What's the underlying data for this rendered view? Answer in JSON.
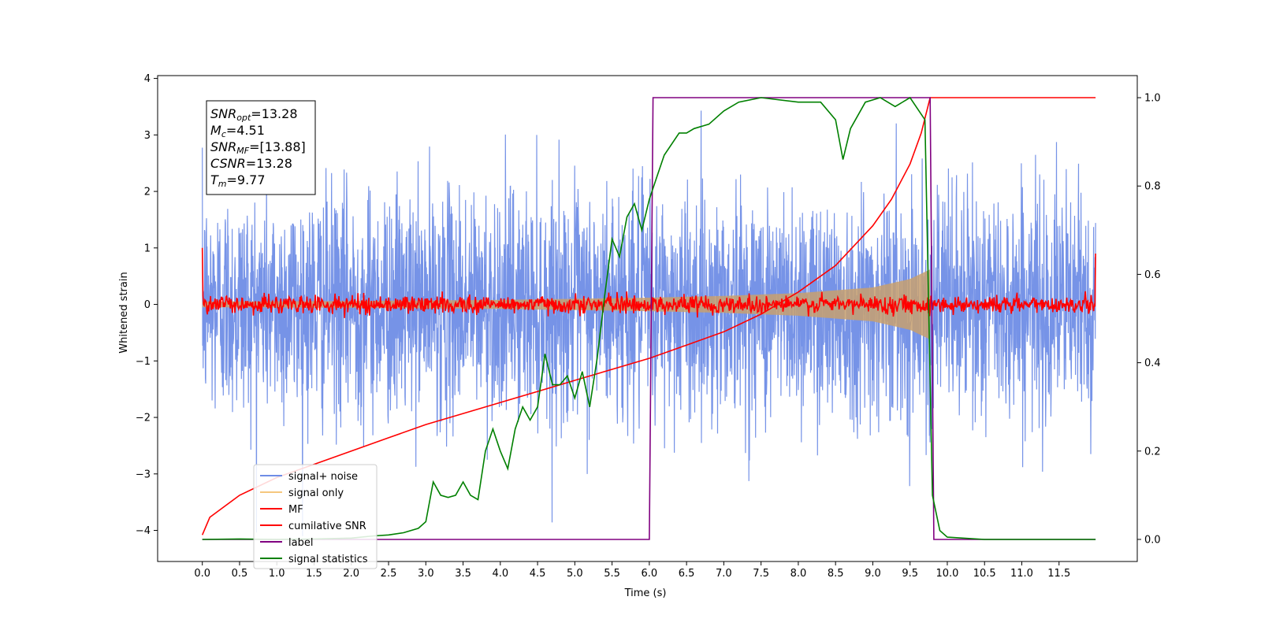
{
  "chart_data": {
    "type": "line",
    "title": "",
    "xlabel": "Time (s)",
    "ylabel": "Whitened strain",
    "xlim": [
      -0.6,
      12.55
    ],
    "ylim": [
      -4.55,
      4.05
    ],
    "y2lim": [
      -0.05,
      1.05
    ],
    "x_ticks": [
      "0.0",
      "0.5",
      "1.0",
      "1.5",
      "2.0",
      "2.5",
      "3.0",
      "3.5",
      "4.0",
      "4.5",
      "5.0",
      "5.5",
      "6.0",
      "6.5",
      "7.0",
      "7.5",
      "8.0",
      "8.5",
      "9.0",
      "9.5",
      "10.0",
      "10.5",
      "11.0",
      "11.5"
    ],
    "y_ticks": [
      "−4",
      "−3",
      "−2",
      "−1",
      "0",
      "1",
      "2",
      "3",
      "4"
    ],
    "y2_ticks": [
      "0.0",
      "0.2",
      "0.4",
      "0.6",
      "0.8",
      "1.0"
    ],
    "grid": false,
    "legend_position": "bottom-left",
    "annotation": {
      "lines": [
        {
          "base": "SNR",
          "sub": "opt",
          "rest": "=13.28"
        },
        {
          "base": "M",
          "sub": "c",
          "rest": "=4.51"
        },
        {
          "base": "SNR",
          "sub": "MF",
          "rest": "=[13.88]"
        },
        {
          "base": "CSNR",
          "sub": "",
          "rest": "=13.28"
        },
        {
          "base": "T",
          "sub": "m",
          "rest": "=9.77"
        }
      ]
    },
    "series": [
      {
        "name": "signal+ noise",
        "color": "#6f8de6",
        "axis": "left",
        "kind": "noise",
        "x_range": [
          0.0,
          11.99
        ],
        "amplitude_sigma": 1.0
      },
      {
        "name": "signal only",
        "color": "#f5c77e",
        "axis": "left",
        "kind": "chirp",
        "x_range": [
          0.0,
          9.77
        ],
        "envelope": [
          [
            0.0,
            0.05
          ],
          [
            2.0,
            0.06
          ],
          [
            4.0,
            0.08
          ],
          [
            6.0,
            0.12
          ],
          [
            7.0,
            0.15
          ],
          [
            8.0,
            0.2
          ],
          [
            9.0,
            0.3
          ],
          [
            9.5,
            0.45
          ],
          [
            9.77,
            0.62
          ]
        ]
      },
      {
        "name": "MF",
        "color": "#ff0000",
        "axis": "left",
        "kind": "mf",
        "x_range": [
          0.0,
          11.99
        ],
        "start_value": 1.0,
        "end_value": 0.9,
        "noise_level": 0.08
      },
      {
        "name": "cumilative SNR",
        "color": "#ff0000",
        "axis": "right",
        "kind": "line",
        "points": [
          [
            0.0,
            0.01
          ],
          [
            0.1,
            0.05
          ],
          [
            0.5,
            0.1
          ],
          [
            1.0,
            0.14
          ],
          [
            1.5,
            0.17
          ],
          [
            2.0,
            0.2
          ],
          [
            2.5,
            0.23
          ],
          [
            3.0,
            0.26
          ],
          [
            3.5,
            0.285
          ],
          [
            4.0,
            0.31
          ],
          [
            4.5,
            0.335
          ],
          [
            5.0,
            0.36
          ],
          [
            5.5,
            0.385
          ],
          [
            6.0,
            0.41
          ],
          [
            6.5,
            0.44
          ],
          [
            7.0,
            0.47
          ],
          [
            7.5,
            0.51
          ],
          [
            8.0,
            0.56
          ],
          [
            8.5,
            0.62
          ],
          [
            9.0,
            0.71
          ],
          [
            9.25,
            0.77
          ],
          [
            9.5,
            0.85
          ],
          [
            9.65,
            0.92
          ],
          [
            9.77,
            1.0
          ],
          [
            11.99,
            1.0
          ]
        ]
      },
      {
        "name": "label",
        "color": "#800080",
        "axis": "right",
        "kind": "line",
        "points": [
          [
            0.0,
            0.0
          ],
          [
            6.0,
            0.0
          ],
          [
            6.05,
            1.0
          ],
          [
            9.77,
            1.0
          ],
          [
            9.82,
            0.0
          ],
          [
            11.99,
            0.0
          ]
        ]
      },
      {
        "name": "signal statistics",
        "color": "#008000",
        "axis": "right",
        "kind": "line",
        "points": [
          [
            0.0,
            0.0
          ],
          [
            0.5,
            0.001
          ],
          [
            1.0,
            0.0
          ],
          [
            1.5,
            0.001
          ],
          [
            2.0,
            0.003
          ],
          [
            2.3,
            0.008
          ],
          [
            2.5,
            0.01
          ],
          [
            2.7,
            0.015
          ],
          [
            2.9,
            0.025
          ],
          [
            3.0,
            0.04
          ],
          [
            3.1,
            0.13
          ],
          [
            3.2,
            0.1
          ],
          [
            3.3,
            0.095
          ],
          [
            3.4,
            0.1
          ],
          [
            3.5,
            0.13
          ],
          [
            3.6,
            0.1
          ],
          [
            3.7,
            0.09
          ],
          [
            3.8,
            0.2
          ],
          [
            3.9,
            0.25
          ],
          [
            4.0,
            0.2
          ],
          [
            4.1,
            0.16
          ],
          [
            4.2,
            0.25
          ],
          [
            4.3,
            0.3
          ],
          [
            4.4,
            0.27
          ],
          [
            4.5,
            0.3
          ],
          [
            4.6,
            0.42
          ],
          [
            4.7,
            0.35
          ],
          [
            4.8,
            0.35
          ],
          [
            4.9,
            0.37
          ],
          [
            5.0,
            0.32
          ],
          [
            5.1,
            0.38
          ],
          [
            5.2,
            0.3
          ],
          [
            5.3,
            0.41
          ],
          [
            5.4,
            0.55
          ],
          [
            5.5,
            0.68
          ],
          [
            5.6,
            0.64
          ],
          [
            5.7,
            0.73
          ],
          [
            5.8,
            0.76
          ],
          [
            5.9,
            0.7
          ],
          [
            6.0,
            0.77
          ],
          [
            6.1,
            0.82
          ],
          [
            6.2,
            0.87
          ],
          [
            6.4,
            0.92
          ],
          [
            6.5,
            0.92
          ],
          [
            6.6,
            0.93
          ],
          [
            6.8,
            0.94
          ],
          [
            7.0,
            0.97
          ],
          [
            7.2,
            0.99
          ],
          [
            7.5,
            1.0
          ],
          [
            8.0,
            0.99
          ],
          [
            8.3,
            0.99
          ],
          [
            8.5,
            0.95
          ],
          [
            8.6,
            0.86
          ],
          [
            8.7,
            0.93
          ],
          [
            8.9,
            0.99
          ],
          [
            9.1,
            1.0
          ],
          [
            9.3,
            0.98
          ],
          [
            9.5,
            1.0
          ],
          [
            9.7,
            0.95
          ],
          [
            9.8,
            0.1
          ],
          [
            9.9,
            0.02
          ],
          [
            10.0,
            0.005
          ],
          [
            10.5,
            0.0
          ],
          [
            11.0,
            0.0
          ],
          [
            11.5,
            0.0
          ],
          [
            11.99,
            0.0
          ]
        ]
      }
    ]
  }
}
